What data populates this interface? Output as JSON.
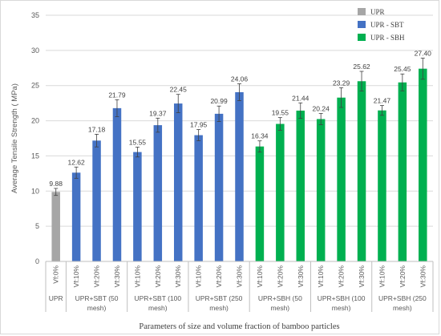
{
  "chart_data": {
    "type": "bar",
    "title": "",
    "xlabel": "Parameters of size and volume fraction of bamboo particles",
    "ylabel": "Average Tensile Strength ( MPa)",
    "ylim": [
      0,
      35
    ],
    "yticks": [
      0,
      5,
      10,
      15,
      20,
      25,
      30,
      35
    ],
    "grid": true,
    "legend_position": "top-right",
    "legend": [
      {
        "name": "UPR",
        "color": "#a6a6a6"
      },
      {
        "name": "UPR - SBT",
        "color": "#4472c4"
      },
      {
        "name": "UPR - SBH",
        "color": "#00b050"
      }
    ],
    "groups": [
      {
        "label": "UPR",
        "series": 0,
        "categories": [
          "Vf:0%"
        ],
        "values": [
          9.88
        ],
        "labels": [
          "9.88"
        ]
      },
      {
        "label": "UPR+SBT (50 mesh)",
        "series": 1,
        "categories": [
          "Vf:10%",
          "Vf:20%",
          "Vf:30%"
        ],
        "values": [
          12.62,
          17.18,
          21.79
        ],
        "labels": [
          "12.62",
          "17.18",
          "21.79"
        ]
      },
      {
        "label": "UPR+SBT (100 mesh)",
        "series": 1,
        "categories": [
          "Vf:10%",
          "Vf:20%",
          "Vf:30%"
        ],
        "values": [
          15.55,
          19.37,
          22.45
        ],
        "labels": [
          "15.55",
          "19.37",
          "22.45"
        ]
      },
      {
        "label": "UPR+SBT (250 mesh)",
        "series": 1,
        "categories": [
          "Vf:10%",
          "Vf:20%",
          "Vf:30%"
        ],
        "values": [
          17.95,
          20.99,
          24.06
        ],
        "labels": [
          "17.95",
          "20.99",
          "24.06"
        ]
      },
      {
        "label": "UPR+SBH (50 mesh)",
        "series": 2,
        "categories": [
          "Vf:10%",
          "Vf:20%",
          "Vf:30%"
        ],
        "values": [
          16.34,
          19.55,
          21.44
        ],
        "labels": [
          "16.34",
          "19.55",
          "21.44"
        ]
      },
      {
        "label": "UPR+SBH (100 mesh)",
        "series": 2,
        "categories": [
          "Vf:10%",
          "Vf:20%",
          "Vf:30%"
        ],
        "values": [
          20.24,
          23.29,
          25.62
        ],
        "labels": [
          "20.24",
          "23.29",
          "25.62"
        ]
      },
      {
        "label": "UPR+SBH (250 mesh)",
        "series": 2,
        "categories": [
          "Vf:10%",
          "Vf:20%",
          "Vf:30%"
        ],
        "values": [
          21.47,
          25.45,
          27.4
        ],
        "labels": [
          "21.47",
          "25.45",
          "27.40"
        ]
      }
    ],
    "error_bars": [
      0.5,
      0.8,
      0.9,
      1.2,
      0.7,
      1.0,
      1.3,
      0.8,
      1.1,
      1.2,
      0.8,
      0.9,
      1.1,
      0.8,
      1.4,
      1.4,
      0.7,
      1.2,
      1.5
    ]
  }
}
